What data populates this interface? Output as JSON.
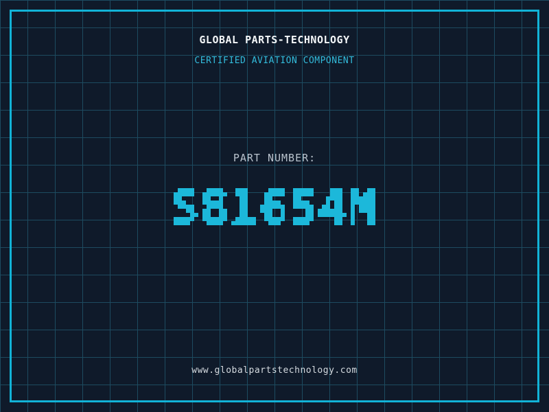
{
  "colors": {
    "background": "#0f1a2a",
    "grid_line": "#1d4b60",
    "frame_border": "#12b3d7",
    "accent_cyan": "#1cb8da",
    "title_text": "#f2f5f7",
    "subtitle_text": "#33bcdc",
    "label_text": "#b9c3cd",
    "footer_text": "#d4dadf"
  },
  "header": {
    "title": "GLOBAL PARTS-TECHNOLOGY",
    "subtitle": "CERTIFIED AVIATION COMPONENT"
  },
  "part": {
    "label": "PART NUMBER:",
    "value": "S81654M"
  },
  "footer": {
    "website": "www.globalpartstechnology.com"
  }
}
